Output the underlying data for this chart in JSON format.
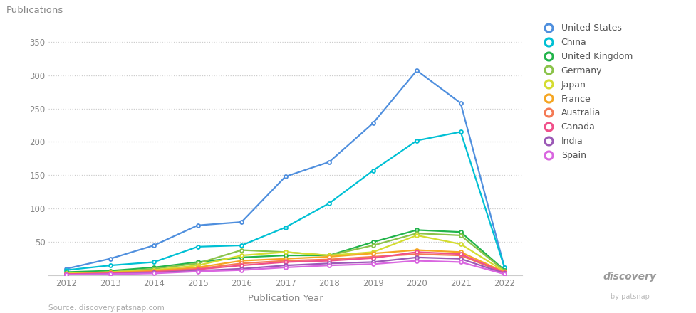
{
  "years": [
    2012,
    2013,
    2014,
    2015,
    2016,
    2017,
    2018,
    2019,
    2020,
    2021,
    2022
  ],
  "series": {
    "United States": {
      "values": [
        10,
        25,
        45,
        75,
        80,
        148,
        170,
        228,
        307,
        258,
        12
      ],
      "color": "#4f8fde"
    },
    "China": {
      "values": [
        8,
        15,
        20,
        43,
        45,
        72,
        108,
        157,
        202,
        215,
        12
      ],
      "color": "#00c0d4"
    },
    "United Kingdom": {
      "values": [
        5,
        7,
        12,
        20,
        27,
        30,
        30,
        50,
        68,
        65,
        8
      ],
      "color": "#22b44b"
    },
    "Germany": {
      "values": [
        3,
        5,
        10,
        18,
        38,
        35,
        30,
        45,
        63,
        60,
        7
      ],
      "color": "#8bc34a"
    },
    "Japan": {
      "values": [
        3,
        5,
        8,
        15,
        30,
        35,
        30,
        35,
        60,
        47,
        6
      ],
      "color": "#d4dc30"
    },
    "France": {
      "values": [
        2,
        4,
        7,
        12,
        22,
        25,
        28,
        33,
        38,
        35,
        5
      ],
      "color": "#f5a623"
    },
    "Australia": {
      "values": [
        2,
        3,
        6,
        10,
        18,
        22,
        24,
        28,
        32,
        30,
        4
      ],
      "color": "#f47a55"
    },
    "Canada": {
      "values": [
        2,
        3,
        5,
        9,
        15,
        20,
        22,
        26,
        35,
        32,
        4
      ],
      "color": "#f0508a"
    },
    "India": {
      "values": [
        1,
        2,
        4,
        7,
        10,
        15,
        18,
        20,
        27,
        25,
        3
      ],
      "color": "#9b59b6"
    },
    "Spain": {
      "values": [
        1,
        2,
        3,
        6,
        8,
        12,
        15,
        17,
        22,
        20,
        2
      ],
      "color": "#d966e0"
    }
  },
  "ylabel": "Publications",
  "xlabel": "Publication Year",
  "ylim": [
    0,
    375
  ],
  "yticks": [
    50,
    100,
    150,
    200,
    250,
    300,
    350
  ],
  "source_text": "Source: discovery.patsnap.com",
  "bg_color": "#ffffff",
  "grid_color": "#cccccc",
  "tick_color": "#888888",
  "label_color": "#888888"
}
